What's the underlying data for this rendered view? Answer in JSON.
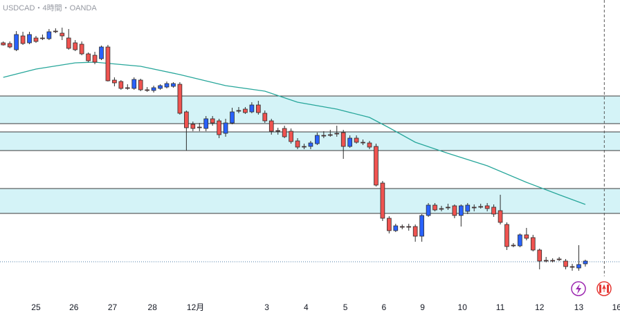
{
  "chart_data": {
    "type": "candlestick",
    "title": "USDCAD・4時間・OANDA",
    "up_color": "#2962ff",
    "down_color": "#ef5350",
    "outline_color": "#2b2b2b",
    "xlim": [
      -0.5,
      94.3
    ],
    "ylim": [
      60,
      500
    ],
    "xticks": [
      {
        "value": 5,
        "label": "25"
      },
      {
        "value": 10.8,
        "label": "26"
      },
      {
        "value": 16.7,
        "label": "27"
      },
      {
        "value": 22.8,
        "label": "28"
      },
      {
        "value": 29.4,
        "label": "12月"
      },
      {
        "value": 40.3,
        "label": "3"
      },
      {
        "value": 46.3,
        "label": "4"
      },
      {
        "value": 52.3,
        "label": "5"
      },
      {
        "value": 58.2,
        "label": "6"
      },
      {
        "value": 64.1,
        "label": "9"
      },
      {
        "value": 70.2,
        "label": "10"
      },
      {
        "value": 76,
        "label": "11"
      },
      {
        "value": 82,
        "label": "12"
      },
      {
        "value": 88,
        "label": "13"
      },
      {
        "value": 93.8,
        "label": "16"
      }
    ],
    "open": [
      438,
      437,
      428,
      448,
      438,
      445,
      445,
      444,
      455,
      452,
      445,
      438,
      436,
      422,
      420,
      415,
      432,
      384,
      382,
      373,
      372,
      384,
      370,
      369,
      372,
      374,
      375,
      378,
      338,
      320,
      316,
      314,
      328,
      325,
      307,
      322,
      340,
      342,
      338,
      348,
      336,
      325,
      311,
      314,
      310,
      296,
      288,
      288,
      292,
      304,
      305,
      307,
      308,
      288,
      300,
      294,
      293,
      288,
      235,
      184,
      166,
      172,
      172,
      172,
      158,
      188,
      203,
      198,
      200,
      202,
      188,
      194,
      200,
      201,
      202,
      200,
      195,
      175,
      145,
      144,
      160,
      156,
      138,
      123,
      123,
      125,
      122,
      114,
      112,
      118
    ],
    "high": [
      440,
      440,
      455,
      454,
      454,
      448,
      450,
      458,
      459,
      460,
      458,
      442,
      440,
      424,
      425,
      434,
      435,
      388,
      384,
      378,
      388,
      386,
      374,
      376,
      378,
      382,
      381,
      381,
      340,
      324,
      322,
      332,
      332,
      328,
      328,
      344,
      345,
      345,
      352,
      354,
      340,
      328,
      315,
      318,
      314,
      300,
      292,
      296,
      308,
      310,
      312,
      318,
      312,
      304,
      304,
      298,
      296,
      292,
      238,
      187,
      176,
      175,
      176,
      175,
      190,
      206,
      206,
      202,
      205,
      204,
      204,
      206,
      204,
      205,
      206,
      204,
      218,
      178,
      148,
      162,
      170,
      160,
      140,
      128,
      126,
      128,
      125,
      118,
      145,
      124
    ],
    "low": [
      434,
      430,
      426,
      435,
      436,
      438,
      442,
      442,
      452,
      442,
      428,
      426,
      420,
      410,
      407,
      413,
      382,
      375,
      370,
      370,
      370,
      368,
      367,
      366,
      370,
      372,
      373,
      334,
      282,
      310,
      310,
      310,
      318,
      300,
      302,
      320,
      336,
      335,
      336,
      334,
      322,
      305,
      305,
      300,
      292,
      284,
      284,
      284,
      290,
      300,
      302,
      302,
      270,
      286,
      292,
      290,
      284,
      230,
      180,
      162,
      164,
      168,
      166,
      150,
      150,
      186,
      194,
      194,
      196,
      184,
      172,
      190,
      194,
      198,
      194,
      186,
      175,
      138,
      142,
      142,
      152,
      136,
      110,
      120,
      120,
      122,
      110,
      108,
      108,
      114
    ],
    "close": [
      435,
      432,
      450,
      437,
      450,
      440,
      444,
      454,
      454,
      448,
      430,
      428,
      422,
      412,
      410,
      432,
      383,
      380,
      372,
      372,
      385,
      370,
      369,
      373,
      376,
      379,
      379,
      336,
      315,
      314,
      315,
      328,
      322,
      305,
      322,
      338,
      339,
      337,
      348,
      337,
      325,
      310,
      310,
      302,
      295,
      287,
      287,
      293,
      304,
      303,
      304,
      306,
      288,
      300,
      294,
      293,
      287,
      232,
      184,
      166,
      173,
      171,
      171,
      158,
      188,
      203,
      196,
      197,
      199,
      188,
      202,
      203,
      199,
      200,
      198,
      190,
      178,
      143,
      144,
      160,
      155,
      138,
      122,
      122,
      122,
      124,
      114,
      113,
      117,
      122
    ],
    "ma": {
      "name": "MA",
      "color": "#26a69a",
      "x": [
        0,
        5,
        11,
        14,
        21,
        27,
        34,
        40,
        45,
        51,
        56,
        59,
        63,
        68,
        74,
        80,
        85,
        89
      ],
      "values": [
        388,
        400,
        409,
        410,
        404,
        392,
        376,
        368,
        352,
        342,
        330,
        315,
        294,
        278,
        260,
        236,
        218,
        204
      ]
    },
    "zones": [
      [
        361,
        321
      ],
      [
        309,
        282
      ],
      [
        227,
        191
      ]
    ],
    "zone_color": "#d4f3f7",
    "last_price": 121,
    "marker_x": 91.9
  }
}
